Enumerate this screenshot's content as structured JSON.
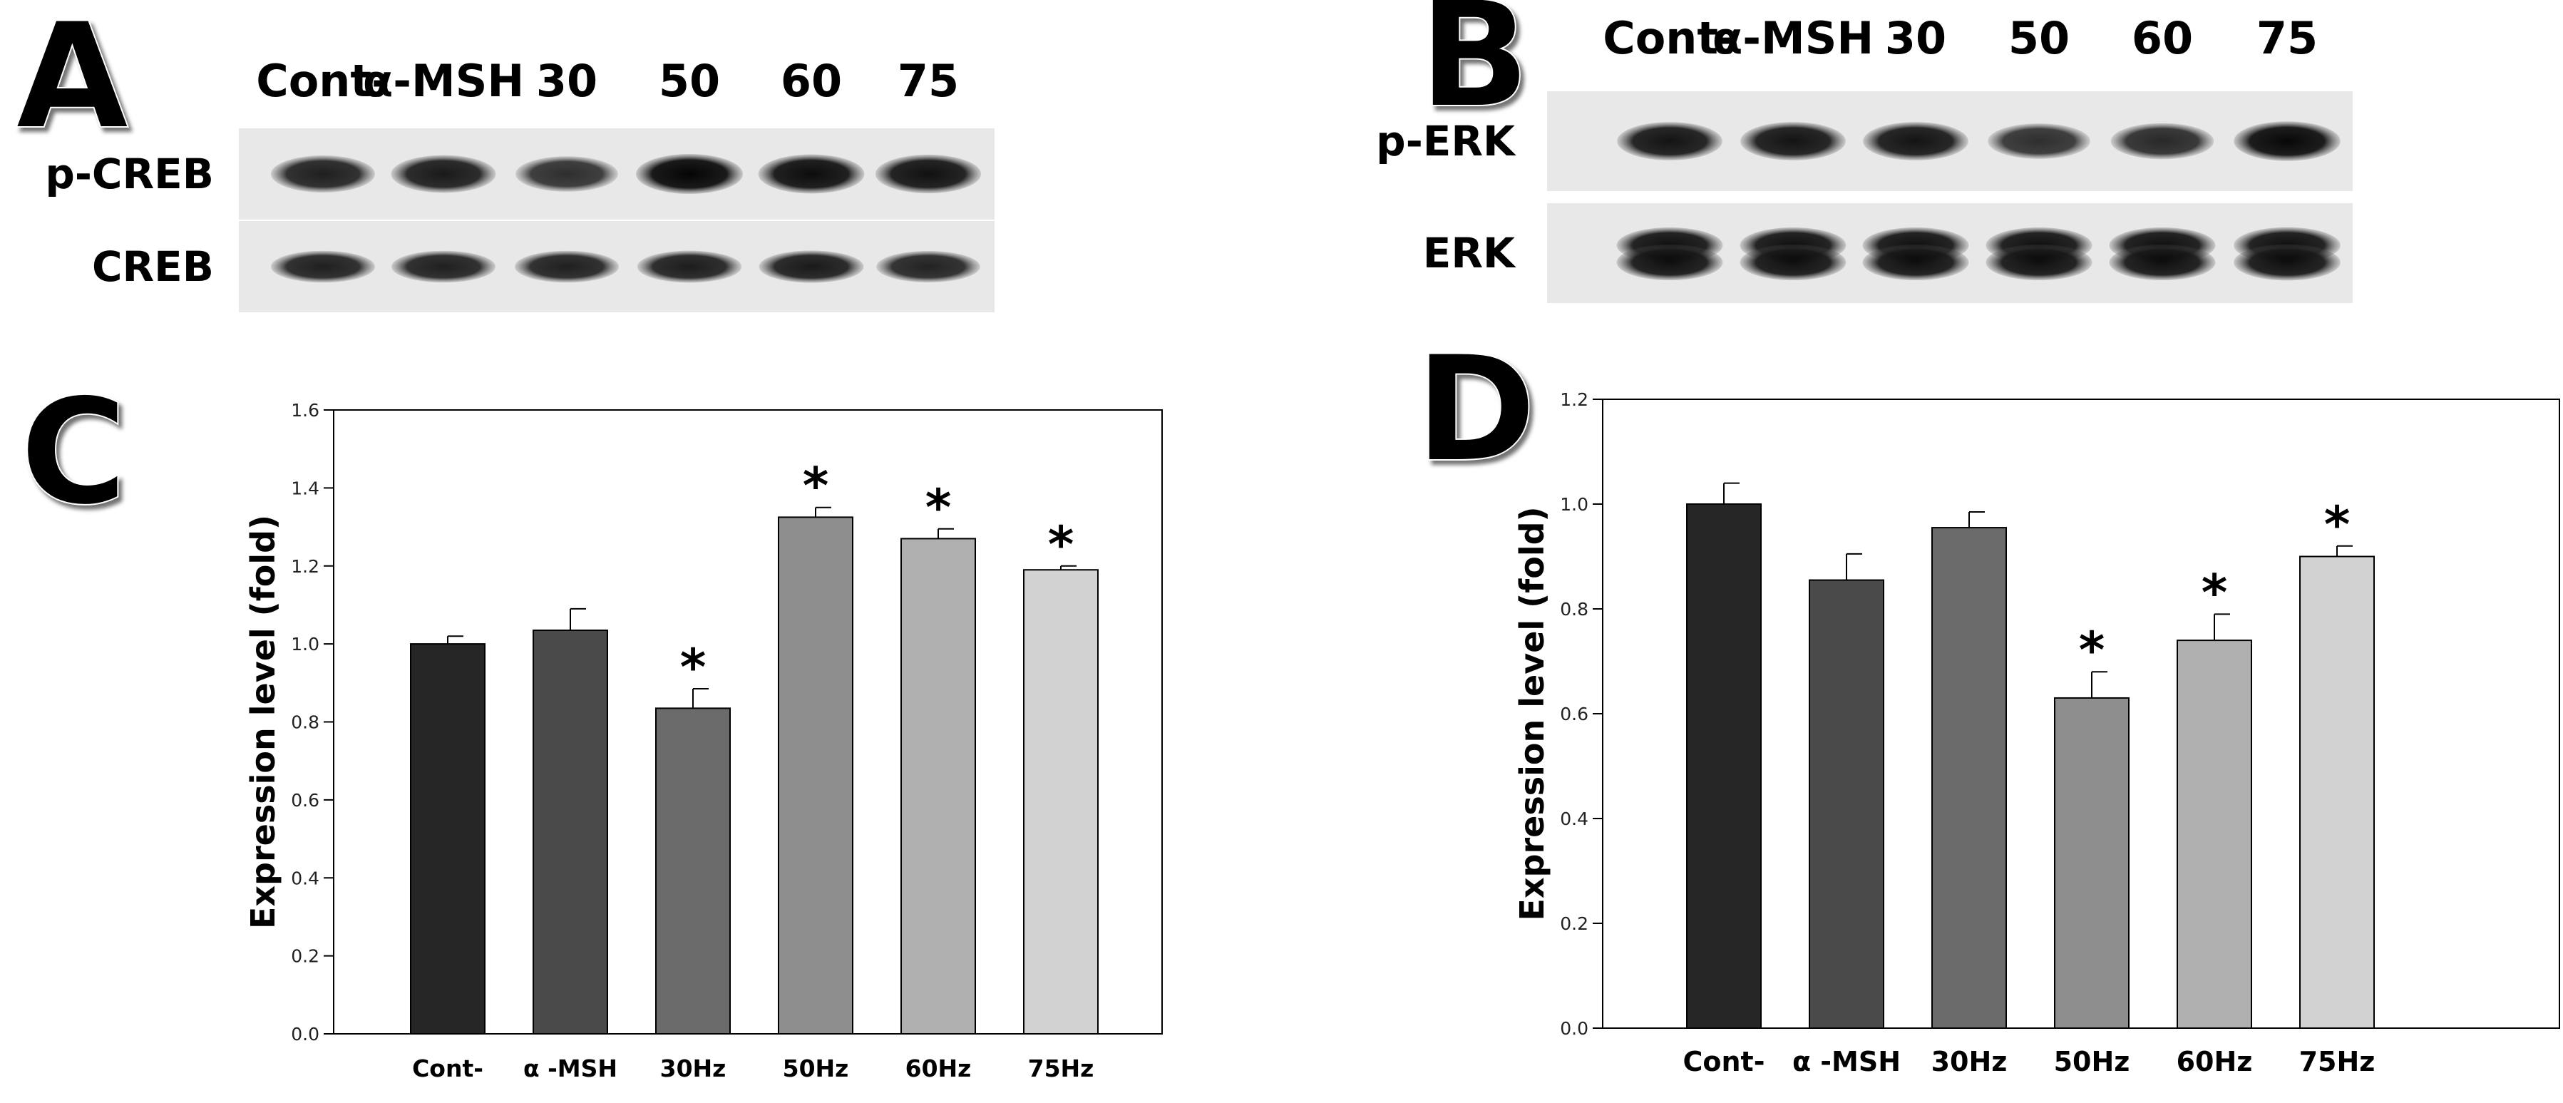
{
  "panels": {
    "A": "A",
    "B": "B",
    "C": "C",
    "D": "D"
  },
  "blot_A": {
    "lanes": [
      "Cont-",
      "α-MSH",
      "30",
      "50",
      "60",
      "75"
    ],
    "rows": [
      "p-CREB",
      "CREB"
    ],
    "band_intensity": [
      [
        0.82,
        0.86,
        0.72,
        1.0,
        0.95,
        0.92
      ],
      [
        0.82,
        0.82,
        0.82,
        0.84,
        0.86,
        0.8
      ]
    ]
  },
  "blot_B": {
    "lanes": [
      "Cont-",
      "α-MSH",
      "30",
      "50",
      "60",
      "75"
    ],
    "rows": [
      "p-ERK",
      "ERK"
    ],
    "band_intensity": [
      [
        0.9,
        0.9,
        0.9,
        0.72,
        0.76,
        0.98
      ],
      [
        0.95,
        0.95,
        0.95,
        0.95,
        0.95,
        0.98
      ]
    ]
  },
  "colors": {
    "bars": [
      "#262626",
      "#4a4a4a",
      "#6b6b6b",
      "#8e8e8e",
      "#b0b0b0",
      "#d2d2d2"
    ],
    "membrane": "#e8e8e8"
  },
  "chart_data": [
    {
      "panel": "C",
      "type": "bar",
      "categories": [
        "Cont-",
        "α -MSH",
        "30Hz",
        "50Hz",
        "60Hz",
        "75Hz"
      ],
      "values": [
        1.0,
        1.035,
        0.835,
        1.325,
        1.27,
        1.19
      ],
      "errors": [
        0.02,
        0.055,
        0.05,
        0.025,
        0.025,
        0.01
      ],
      "significant": [
        false,
        false,
        true,
        true,
        true,
        true
      ],
      "marker": "*",
      "ylabel": "Expression level (fold)",
      "ylim": [
        0,
        1.6
      ],
      "yticks": [
        "0.0",
        "0.2",
        "0.4",
        "0.6",
        "0.8",
        "1.0",
        "1.2",
        "1.4",
        "1.6"
      ]
    },
    {
      "panel": "D",
      "type": "bar",
      "categories": [
        "Cont-",
        "α -MSH",
        "30Hz",
        "50Hz",
        "60Hz",
        "75Hz"
      ],
      "values": [
        1.0,
        0.855,
        0.955,
        0.63,
        0.74,
        0.9
      ],
      "errors": [
        0.04,
        0.05,
        0.03,
        0.05,
        0.05,
        0.02
      ],
      "significant": [
        false,
        false,
        false,
        true,
        true,
        true
      ],
      "marker": "*",
      "ylabel": "Expression level (fold)",
      "ylim": [
        0,
        1.2
      ],
      "yticks": [
        "0.0",
        "0.2",
        "0.4",
        "0.6",
        "0.8",
        "1.0",
        "1.2"
      ]
    }
  ]
}
